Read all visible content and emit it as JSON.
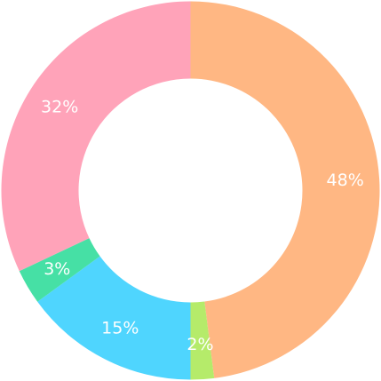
{
  "chart_data": {
    "type": "pie",
    "donut": true,
    "slices": [
      {
        "value": 48,
        "label": "48%",
        "color": "#FFB783"
      },
      {
        "value": 2,
        "label": "2%",
        "color": "#B5EB6A"
      },
      {
        "value": 15,
        "label": "15%",
        "color": "#4FD5FE"
      },
      {
        "value": 3,
        "label": "3%",
        "color": "#46E0A5"
      },
      {
        "value": 32,
        "label": "32%",
        "color": "#FFA3B9"
      }
    ]
  }
}
